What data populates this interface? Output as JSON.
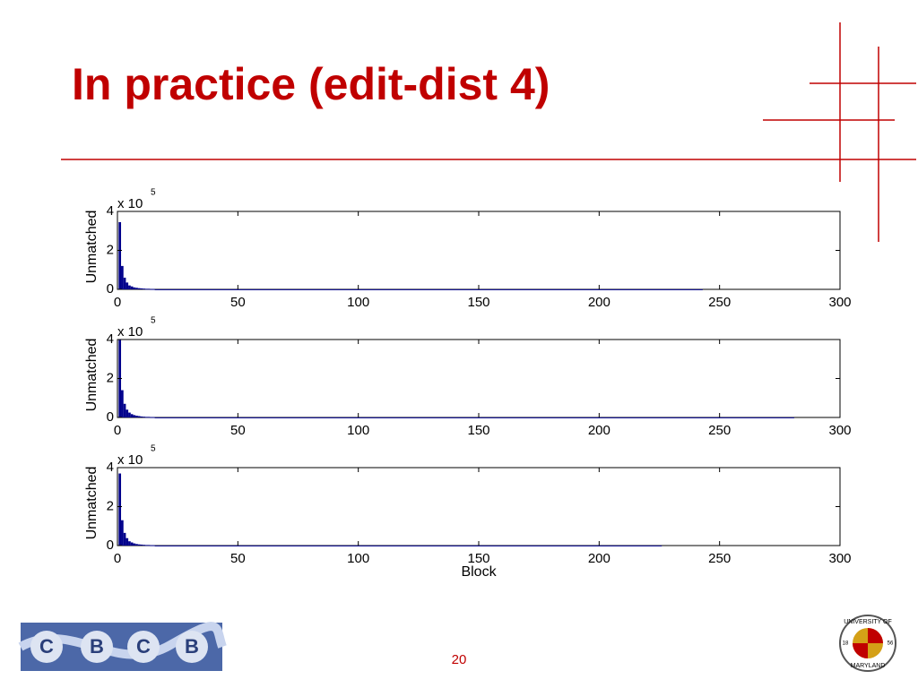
{
  "title": "In practice (edit-dist 4)",
  "page_number": "20",
  "logo": {
    "letters": [
      "C",
      "B",
      "C",
      "B"
    ]
  },
  "seal": {
    "top": "UNIVERSITY OF",
    "bottom": "MARYLAND",
    "left": "18",
    "right": "56"
  },
  "chart_data": [
    {
      "type": "histogram",
      "color": "#00008b",
      "y_label": "Unmatched",
      "y_multiplier": "x 10",
      "y_exponent": "5",
      "bins": [
        0.5,
        1.5,
        2.5,
        3.5,
        4.5,
        5.5,
        6.5,
        7.5,
        8.5,
        9.5,
        10.5,
        11.5,
        12.5,
        13.5,
        14.5,
        15.5,
        243
      ],
      "values": [
        345000,
        120000,
        60000,
        35000,
        20000,
        15000,
        10000,
        8000,
        6000,
        5000,
        4000,
        3000,
        3000,
        2000,
        2000,
        500
      ],
      "xlim": [
        0,
        300
      ],
      "xticks": [
        0,
        50,
        100,
        150,
        200,
        250,
        300
      ],
      "ylim": [
        0,
        400000
      ],
      "yticks": [
        {
          "value": 0,
          "label": "0"
        },
        {
          "value": 200000,
          "label": "2"
        },
        {
          "value": 400000,
          "label": "4"
        }
      ]
    },
    {
      "type": "histogram",
      "color": "#00008b",
      "y_label": "Unmatched",
      "y_multiplier": "x 10",
      "y_exponent": "5",
      "bins": [
        0.5,
        1.5,
        2.5,
        3.5,
        4.5,
        5.5,
        6.5,
        7.5,
        8.5,
        9.5,
        10.5,
        11.5,
        12.5,
        13.5,
        14.5,
        15.5,
        281
      ],
      "values": [
        400000,
        140000,
        70000,
        40000,
        25000,
        17000,
        12000,
        9000,
        7000,
        5000,
        4000,
        3000,
        3000,
        2000,
        2000,
        500
      ],
      "xlim": [
        0,
        300
      ],
      "xticks": [
        0,
        50,
        100,
        150,
        200,
        250,
        300
      ],
      "ylim": [
        0,
        400000
      ],
      "yticks": [
        {
          "value": 0,
          "label": "0"
        },
        {
          "value": 200000,
          "label": "2"
        },
        {
          "value": 400000,
          "label": "4"
        }
      ]
    },
    {
      "type": "histogram",
      "color": "#00008b",
      "y_label": "Unmatched",
      "y_multiplier": "x 10",
      "y_exponent": "5",
      "x_label": "Block",
      "bins": [
        0.5,
        1.5,
        2.5,
        3.5,
        4.5,
        5.5,
        6.5,
        7.5,
        8.5,
        9.5,
        10.5,
        11.5,
        12.5,
        13.5,
        14.5,
        15.5,
        226
      ],
      "values": [
        370000,
        130000,
        65000,
        38000,
        22000,
        16000,
        11000,
        8000,
        6000,
        5000,
        4000,
        3000,
        3000,
        2000,
        2000,
        500
      ],
      "xlim": [
        0,
        300
      ],
      "xticks": [
        0,
        50,
        100,
        150,
        200,
        250,
        300
      ],
      "ylim": [
        0,
        400000
      ],
      "yticks": [
        {
          "value": 0,
          "label": "0"
        },
        {
          "value": 200000,
          "label": "2"
        },
        {
          "value": 400000,
          "label": "4"
        }
      ]
    }
  ]
}
